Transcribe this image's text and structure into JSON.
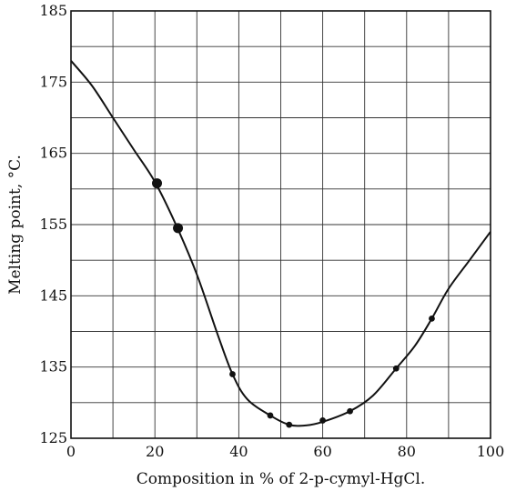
{
  "chart_data": {
    "type": "line",
    "title": "",
    "xlabel": "Composition in % of 2-p-cymyl-HgCl.",
    "ylabel": "Melting point, °C.",
    "xlim": [
      0,
      100
    ],
    "ylim": [
      125,
      185
    ],
    "grid": true,
    "x_ticks": [
      0,
      20,
      40,
      60,
      80,
      100
    ],
    "x_tick_labels": [
      "0",
      "20",
      "40",
      "60",
      "80",
      "100"
    ],
    "y_ticks": [
      125,
      135,
      145,
      155,
      165,
      175,
      185
    ],
    "y_tick_labels": [
      "125",
      "135",
      "145",
      "155",
      "165",
      "175",
      "185"
    ],
    "x_minor_grid": [
      10,
      30,
      50,
      70,
      90
    ],
    "y_minor_grid": [
      130,
      140,
      150,
      160,
      170,
      180
    ],
    "points": [
      {
        "x": 20.5,
        "y": 160.8,
        "size": "large"
      },
      {
        "x": 25.5,
        "y": 154.5,
        "size": "large"
      },
      {
        "x": 38.5,
        "y": 134.0,
        "size": "small"
      },
      {
        "x": 47.5,
        "y": 128.2,
        "size": "small"
      },
      {
        "x": 52.0,
        "y": 126.9,
        "size": "small"
      },
      {
        "x": 60.0,
        "y": 127.5,
        "size": "small"
      },
      {
        "x": 66.5,
        "y": 128.8,
        "size": "small"
      },
      {
        "x": 77.5,
        "y": 134.8,
        "size": "small"
      },
      {
        "x": 86.0,
        "y": 141.8,
        "size": "small"
      }
    ],
    "curve": [
      [
        0,
        178.0
      ],
      [
        5,
        174.5
      ],
      [
        10,
        170.0
      ],
      [
        15,
        165.5
      ],
      [
        20,
        161.0
      ],
      [
        25,
        155.0
      ],
      [
        30,
        148.0
      ],
      [
        35,
        139.5
      ],
      [
        38.5,
        134.0
      ],
      [
        42,
        130.5
      ],
      [
        47.5,
        128.2
      ],
      [
        52,
        126.9
      ],
      [
        56,
        126.8
      ],
      [
        60,
        127.3
      ],
      [
        66.5,
        128.8
      ],
      [
        72,
        131.0
      ],
      [
        77.5,
        134.8
      ],
      [
        82,
        138.0
      ],
      [
        86,
        141.8
      ],
      [
        90,
        146.0
      ],
      [
        95,
        150.0
      ],
      [
        100,
        154.0
      ]
    ]
  }
}
